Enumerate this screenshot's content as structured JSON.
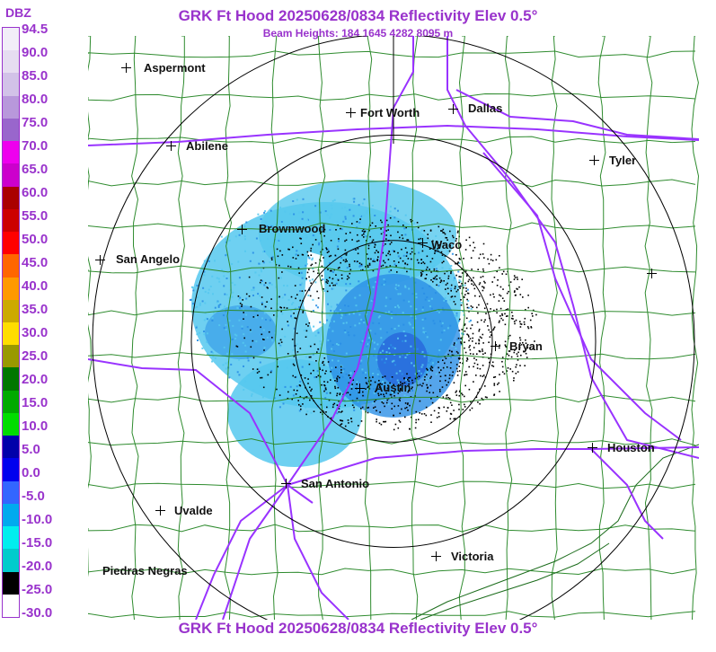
{
  "header": {
    "title": "GRK Ft Hood 20250628/0834 Reflectivity Elev 0.5°",
    "beam_heights": "Beam Heights: 184 1645 4282 8095 m"
  },
  "footer": {
    "title": "GRK Ft Hood 20250628/0834 Reflectivity Elev 0.5°"
  },
  "legend": {
    "unit": "DBZ",
    "labels": [
      "94.5",
      "90.0",
      "85.0",
      "80.0",
      "75.0",
      "70.0",
      "65.0",
      "60.0",
      "55.0",
      "50.0",
      "45.0",
      "40.0",
      "35.0",
      "30.0",
      "25.0",
      "20.0",
      "15.0",
      "10.0",
      "5.0",
      "0.0",
      "-5.0",
      "-10.0",
      "-15.0",
      "-20.0",
      "-25.0",
      "-30.0"
    ],
    "colors": [
      "#f2eef8",
      "#e6ddf1",
      "#d2c2e8",
      "#b898db",
      "#9966cc",
      "#ee00ee",
      "#cc00cc",
      "#aa0000",
      "#cc0000",
      "#ff0000",
      "#ff6600",
      "#ff9900",
      "#ccaa00",
      "#ffdd00",
      "#999900",
      "#007700",
      "#00aa00",
      "#00dd00",
      "#0000aa",
      "#0000ee",
      "#3366ff",
      "#00aaee",
      "#00eeee",
      "#00cccc",
      "#000000",
      "#ffffff"
    ]
  },
  "map": {
    "cities": [
      {
        "name": "Aspermont"
      },
      {
        "name": "Fort Worth"
      },
      {
        "name": "Dallas"
      },
      {
        "name": "Abilene"
      },
      {
        "name": "Tyler"
      },
      {
        "name": "Brownwood"
      },
      {
        "name": "Waco"
      },
      {
        "name": "San Angelo"
      },
      {
        "name": "Bryan"
      },
      {
        "name": "Austin"
      },
      {
        "name": "Houston"
      },
      {
        "name": "San Antonio"
      },
      {
        "name": "Uvalde"
      },
      {
        "name": "Victoria"
      },
      {
        "name": "Piedras Negras"
      },
      {
        "name": ""
      }
    ],
    "colors": {
      "county_lines": "#2e8b2e",
      "highways": "#9933ff",
      "range_rings": "#000000",
      "echo_light": "#55c8ee",
      "echo_medium": "#2a8fe6",
      "echo_dark": "#1f4fd6",
      "noise": "#000000"
    }
  }
}
